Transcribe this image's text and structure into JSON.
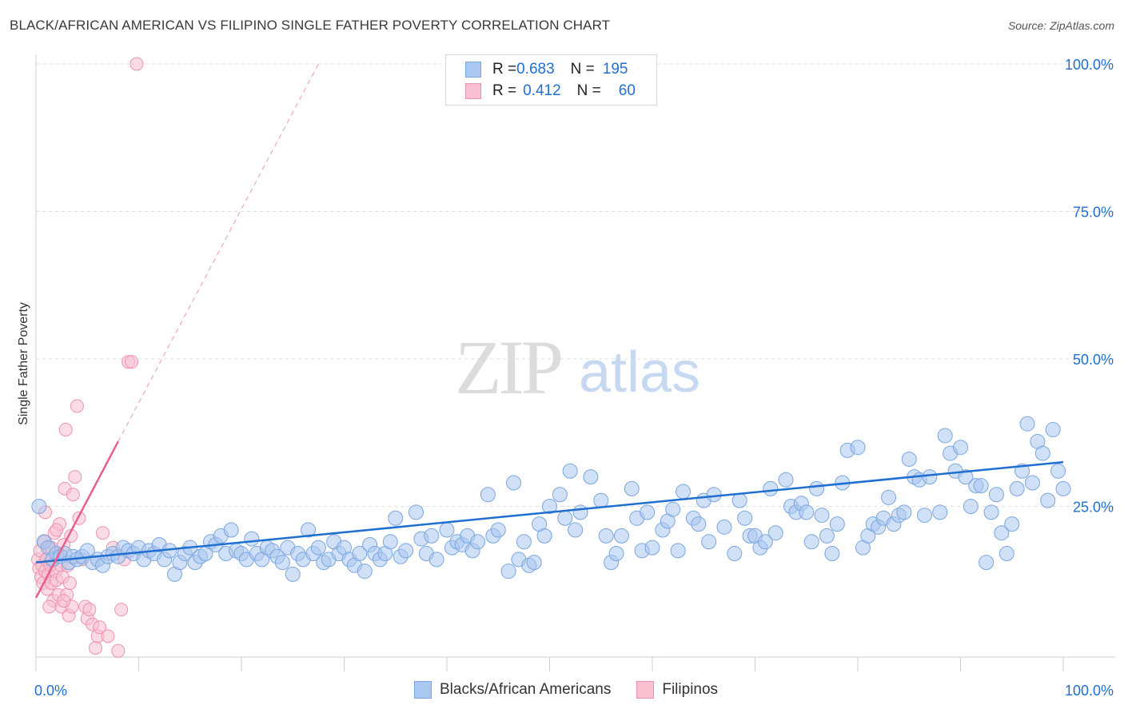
{
  "title": "BLACK/AFRICAN AMERICAN VS FILIPINO SINGLE FATHER POVERTY CORRELATION CHART",
  "source": "Source: ZipAtlas.com",
  "watermark": {
    "zip": "ZIP",
    "atlas": "atlas"
  },
  "legend": {
    "rows": [
      {
        "r_label": "R = ",
        "r_value": "0.683",
        "n_label": "N = ",
        "n_value": "195",
        "color": "#a9c7ef",
        "border": "#7aa6e0"
      },
      {
        "r_label": "R = ",
        "r_value": "0.412",
        "n_label": "N = ",
        "n_value": "60",
        "color": "#f8bfd0",
        "border": "#ee92ae"
      }
    ]
  },
  "bottom_legend": [
    {
      "label": "Blacks/African Americans",
      "color": "#a9c7ef",
      "border": "#7aa6e0"
    },
    {
      "label": "Filipinos",
      "color": "#f8bfd0",
      "border": "#ee92ae"
    }
  ],
  "chart_data": {
    "type": "scatter",
    "title": "BLACK/AFRICAN AMERICAN VS FILIPINO SINGLE FATHER POVERTY CORRELATION CHART",
    "xlabel": "",
    "ylabel": "Single Father Poverty",
    "x_tick_labels": [
      "0.0%",
      "100.0%"
    ],
    "y_tick_labels": [
      "25.0%",
      "50.0%",
      "75.0%",
      "100.0%"
    ],
    "y_ticks": [
      25,
      50,
      75,
      100
    ],
    "xlim": [
      0,
      100
    ],
    "ylim": [
      0,
      100
    ],
    "grid": true,
    "legend_position": "top-center",
    "colors": {
      "blue": "#1f6fd0",
      "pink": "#e8608a",
      "blue_fill": "#a9c7ef",
      "pink_fill": "#f8bfd0"
    },
    "series": [
      {
        "name": "Blacks/African Americans",
        "color": "#a9c7ef",
        "trend": {
          "x": [
            0,
            100
          ],
          "y": [
            15.5,
            32.5
          ]
        },
        "points": [
          [
            0.3,
            25
          ],
          [
            0.8,
            19
          ],
          [
            1.2,
            18
          ],
          [
            1.6,
            16
          ],
          [
            2,
            17
          ],
          [
            2.4,
            16.5
          ],
          [
            2.8,
            17
          ],
          [
            3.2,
            15.5
          ],
          [
            3.6,
            16.5
          ],
          [
            4,
            16
          ],
          [
            4.5,
            16.5
          ],
          [
            5,
            17.5
          ],
          [
            5.5,
            15.5
          ],
          [
            6,
            16
          ],
          [
            6.5,
            15
          ],
          [
            7,
            16.5
          ],
          [
            7.5,
            17
          ],
          [
            8,
            16.5
          ],
          [
            8.5,
            18
          ],
          [
            9,
            17.5
          ],
          [
            9.5,
            17
          ],
          [
            10,
            18
          ],
          [
            10.5,
            16
          ],
          [
            11,
            17.5
          ],
          [
            11.5,
            17
          ],
          [
            12,
            18.5
          ],
          [
            12.5,
            16
          ],
          [
            13,
            17.5
          ],
          [
            13.5,
            13.5
          ],
          [
            14,
            15.5
          ],
          [
            14.5,
            17
          ],
          [
            15,
            18
          ],
          [
            15.5,
            15.5
          ],
          [
            16,
            16.5
          ],
          [
            16.5,
            17
          ],
          [
            17,
            19
          ],
          [
            17.5,
            18.5
          ],
          [
            18,
            20
          ],
          [
            18.5,
            17
          ],
          [
            19,
            21
          ],
          [
            19.5,
            17.5
          ],
          [
            20,
            17
          ],
          [
            20.5,
            16
          ],
          [
            21,
            19.5
          ],
          [
            21.5,
            17
          ],
          [
            22,
            16
          ],
          [
            22.5,
            18
          ],
          [
            23,
            17.5
          ],
          [
            23.5,
            16.5
          ],
          [
            24,
            15.5
          ],
          [
            24.5,
            18
          ],
          [
            25,
            13.5
          ],
          [
            25.5,
            17
          ],
          [
            26,
            16
          ],
          [
            26.5,
            21
          ],
          [
            27,
            17
          ],
          [
            27.5,
            18
          ],
          [
            28,
            15.5
          ],
          [
            28.5,
            16
          ],
          [
            29,
            19
          ],
          [
            29.5,
            17
          ],
          [
            30,
            18
          ],
          [
            30.5,
            16
          ],
          [
            31,
            15
          ],
          [
            31.5,
            17
          ],
          [
            32,
            14
          ],
          [
            32.5,
            18.5
          ],
          [
            33,
            17
          ],
          [
            33.5,
            16
          ],
          [
            34,
            17
          ],
          [
            34.5,
            19
          ],
          [
            35,
            23
          ],
          [
            35.5,
            16.5
          ],
          [
            36,
            17.5
          ],
          [
            37,
            24
          ],
          [
            37.5,
            19.5
          ],
          [
            38,
            17
          ],
          [
            38.5,
            20
          ],
          [
            39,
            16
          ],
          [
            40,
            21
          ],
          [
            40.5,
            18
          ],
          [
            41,
            19
          ],
          [
            41.5,
            18.5
          ],
          [
            42,
            20
          ],
          [
            42.5,
            17.5
          ],
          [
            43,
            19
          ],
          [
            44,
            27
          ],
          [
            44.5,
            20
          ],
          [
            45,
            21
          ],
          [
            46,
            14
          ],
          [
            46.5,
            29
          ],
          [
            47,
            16
          ],
          [
            47.5,
            19
          ],
          [
            48,
            15
          ],
          [
            48.5,
            15.5
          ],
          [
            49,
            22
          ],
          [
            49.5,
            20
          ],
          [
            50,
            25
          ],
          [
            51,
            27
          ],
          [
            51.5,
            23
          ],
          [
            52,
            31
          ],
          [
            52.5,
            21
          ],
          [
            53,
            24
          ],
          [
            54,
            30
          ],
          [
            55,
            26
          ],
          [
            55.5,
            20
          ],
          [
            56,
            15.5
          ],
          [
            56.5,
            17
          ],
          [
            57,
            20
          ],
          [
            58,
            28
          ],
          [
            58.5,
            23
          ],
          [
            59,
            17.5
          ],
          [
            59.5,
            24
          ],
          [
            60,
            18
          ],
          [
            61,
            21
          ],
          [
            61.5,
            22.5
          ],
          [
            62,
            24.5
          ],
          [
            62.5,
            17.5
          ],
          [
            63,
            27.5
          ],
          [
            64,
            23
          ],
          [
            64.5,
            22
          ],
          [
            65,
            26
          ],
          [
            65.5,
            19
          ],
          [
            66,
            27
          ],
          [
            67,
            21.5
          ],
          [
            68,
            17
          ],
          [
            68.5,
            26
          ],
          [
            69,
            23
          ],
          [
            69.5,
            20
          ],
          [
            70,
            20
          ],
          [
            70.5,
            18
          ],
          [
            71,
            19
          ],
          [
            71.5,
            28
          ],
          [
            72,
            20.5
          ],
          [
            73,
            29.5
          ],
          [
            73.5,
            25
          ],
          [
            74,
            24
          ],
          [
            74.5,
            25.5
          ],
          [
            75,
            24
          ],
          [
            75.5,
            19
          ],
          [
            76,
            28
          ],
          [
            76.5,
            23.5
          ],
          [
            77,
            20
          ],
          [
            77.5,
            17
          ],
          [
            78,
            22
          ],
          [
            78.5,
            29
          ],
          [
            79,
            34.5
          ],
          [
            80,
            35
          ],
          [
            80.5,
            18
          ],
          [
            81,
            20
          ],
          [
            81.5,
            22
          ],
          [
            82,
            21.5
          ],
          [
            82.5,
            23
          ],
          [
            83,
            26.5
          ],
          [
            83.5,
            22
          ],
          [
            84,
            23.5
          ],
          [
            84.5,
            24
          ],
          [
            85,
            33
          ],
          [
            85.5,
            30
          ],
          [
            86,
            29.5
          ],
          [
            86.5,
            23.5
          ],
          [
            87,
            30
          ],
          [
            88,
            24
          ],
          [
            88.5,
            37
          ],
          [
            89,
            34
          ],
          [
            89.5,
            31
          ],
          [
            90,
            35
          ],
          [
            90.5,
            30
          ],
          [
            91,
            25
          ],
          [
            91.5,
            28.5
          ],
          [
            92,
            28.5
          ],
          [
            92.5,
            15.5
          ],
          [
            93,
            24
          ],
          [
            93.5,
            27
          ],
          [
            94,
            20.5
          ],
          [
            94.5,
            17
          ],
          [
            95,
            22
          ],
          [
            95.5,
            28
          ],
          [
            96,
            31
          ],
          [
            96.5,
            39
          ],
          [
            97,
            29
          ],
          [
            97.5,
            36
          ],
          [
            98,
            34
          ],
          [
            98.5,
            26
          ],
          [
            99,
            38
          ],
          [
            99.5,
            31
          ],
          [
            100,
            28
          ]
        ]
      },
      {
        "name": "Filipinos",
        "color": "#f8bfd0",
        "trend": {
          "x": [
            0,
            8.0
          ],
          "y": [
            9.5,
            36.0
          ]
        },
        "trend_extended": {
          "x": [
            8.0,
            27.5
          ],
          "y": [
            36.0,
            100
          ]
        },
        "points": [
          [
            0.2,
            16
          ],
          [
            0.3,
            14.5
          ],
          [
            0.4,
            17.5
          ],
          [
            0.5,
            13
          ],
          [
            0.6,
            15
          ],
          [
            0.7,
            12
          ],
          [
            0.8,
            19
          ],
          [
            0.9,
            14
          ],
          [
            1.0,
            16
          ],
          [
            1.1,
            11
          ],
          [
            1.2,
            13.5
          ],
          [
            1.3,
            18
          ],
          [
            1.4,
            15
          ],
          [
            1.5,
            12
          ],
          [
            1.6,
            16
          ],
          [
            1.7,
            9
          ],
          [
            1.8,
            20.5
          ],
          [
            1.9,
            14
          ],
          [
            2.0,
            12.5
          ],
          [
            2.1,
            17
          ],
          [
            2.2,
            10
          ],
          [
            2.3,
            22
          ],
          [
            2.4,
            15
          ],
          [
            2.5,
            8
          ],
          [
            2.6,
            13
          ],
          [
            2.7,
            18.5
          ],
          [
            2.8,
            28
          ],
          [
            2.9,
            38
          ],
          [
            3.0,
            10
          ],
          [
            3.1,
            15
          ],
          [
            3.2,
            6.5
          ],
          [
            3.3,
            12
          ],
          [
            3.4,
            20
          ],
          [
            3.5,
            8
          ],
          [
            3.6,
            27
          ],
          [
            3.8,
            30
          ],
          [
            4.0,
            42
          ],
          [
            4.2,
            23
          ],
          [
            4.5,
            16
          ],
          [
            4.8,
            8
          ],
          [
            5.0,
            6
          ],
          [
            5.2,
            7.5
          ],
          [
            5.5,
            5
          ],
          [
            5.8,
            1
          ],
          [
            6.0,
            3
          ],
          [
            6.2,
            4.5
          ],
          [
            6.5,
            20.5
          ],
          [
            7.0,
            3
          ],
          [
            7.5,
            18
          ],
          [
            8.0,
            0.5
          ],
          [
            8.3,
            7.5
          ],
          [
            8.6,
            16
          ],
          [
            9.0,
            49.5
          ],
          [
            9.3,
            49.5
          ],
          [
            9.8,
            100
          ],
          [
            1.5,
            18
          ],
          [
            2.0,
            21
          ],
          [
            0.9,
            24
          ],
          [
            1.3,
            8
          ],
          [
            2.7,
            9
          ]
        ]
      }
    ]
  }
}
